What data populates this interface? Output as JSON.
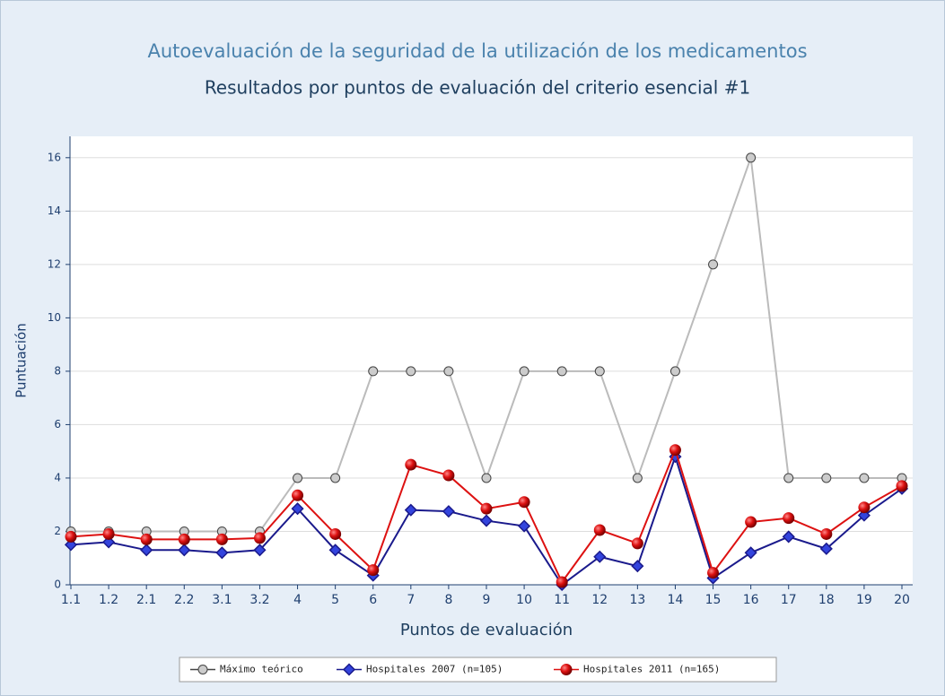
{
  "chart_data": {
    "type": "line",
    "title": "Autoevaluación de la seguridad de la utilización de los medicamentos",
    "subtitle": "Resultados por puntos de evaluación del criterio esencial #1",
    "x_label": "Puntos de evaluación",
    "y_label": "Puntuación",
    "categories": [
      "1.1",
      "1.2",
      "2.1",
      "2.2",
      "3.1",
      "3.2",
      "4",
      "5",
      "6",
      "7",
      "8",
      "9",
      "10",
      "11",
      "12",
      "13",
      "14",
      "15",
      "16",
      "17",
      "18",
      "19",
      "20"
    ],
    "series": [
      {
        "name": "Máximo teórico",
        "color": "#bbbbbb",
        "marker": "circle",
        "values": [
          2,
          2,
          2,
          2,
          2,
          2,
          4,
          4,
          8,
          8,
          8,
          4,
          8,
          8,
          8,
          4,
          8,
          12,
          16,
          4,
          4,
          4,
          4
        ]
      },
      {
        "name": "Hospitales 2007 (n=105)",
        "color": "#1a1a8c",
        "marker": "diamond",
        "values": [
          1.5,
          1.6,
          1.3,
          1.3,
          1.2,
          1.3,
          2.85,
          1.3,
          0.35,
          2.8,
          2.75,
          2.4,
          2.2,
          0,
          1.05,
          0.7,
          4.8,
          0.25,
          1.2,
          1.8,
          1.35,
          2.6,
          3.6
        ]
      },
      {
        "name": "Hospitales 2011 (n=165)",
        "color": "#dd1111",
        "marker": "ball",
        "values": [
          1.8,
          1.9,
          1.7,
          1.7,
          1.7,
          1.75,
          3.35,
          1.9,
          0.55,
          4.5,
          4.1,
          2.85,
          3.1,
          0.1,
          2.05,
          1.55,
          5.05,
          0.45,
          2.35,
          2.5,
          1.9,
          2.9,
          3.7
        ]
      }
    ],
    "ylim": [
      0,
      16.8
    ],
    "yticks": [
      0,
      2,
      4,
      6,
      8,
      10,
      12,
      14,
      16
    ],
    "grid": true,
    "legend": "bottom"
  }
}
